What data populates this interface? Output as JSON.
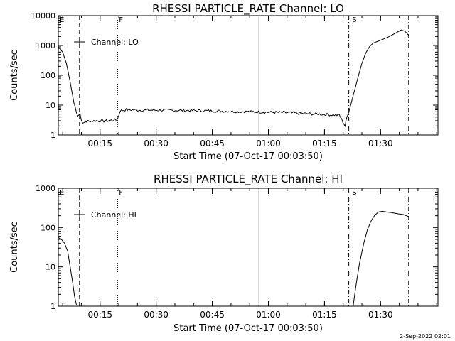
{
  "footer": {
    "timestamp": "2-Sep-2022 02:01"
  },
  "colors": {
    "line": "#000000",
    "background": "#ffffff"
  },
  "chart_data": [
    {
      "type": "line",
      "title": "RHESSI PARTICLE_RATE Channel: LO",
      "xlabel": "Start Time (07-Oct-17 00:03:50)",
      "ylabel": "Counts/sec",
      "yscale": "log",
      "ylim": [
        1,
        10000
      ],
      "xlim_minutes_after_start": [
        0,
        101.5
      ],
      "x_tick_labels": [
        "00:15",
        "00:30",
        "00:45",
        "01:00",
        "01:15",
        "01:30"
      ],
      "y_tick_labels": [
        "1",
        "10",
        "100",
        "1000",
        "10000"
      ],
      "legend": {
        "label": "Channel: LO",
        "position": "top-left"
      },
      "markers": [
        {
          "label": "E",
          "time": "00:03:50",
          "style": "none"
        },
        {
          "label": "",
          "time": "00:09:30",
          "style": "dashed"
        },
        {
          "label": "F",
          "time": "00:19:40",
          "style": "dotted"
        },
        {
          "label": "",
          "time": "00:57:30",
          "style": "solid"
        },
        {
          "label": "",
          "time": "01:21:30",
          "style": "dash-dot"
        },
        {
          "label": "S",
          "time": "01:22:00",
          "style": "none"
        },
        {
          "label": "",
          "time": "01:37:30",
          "style": "dash-dot"
        }
      ],
      "series": [
        {
          "name": "Channel: LO",
          "noise": true,
          "x": [
            "00:03:50",
            "00:05:00",
            "00:06:00",
            "00:07:00",
            "00:08:00",
            "00:09:00",
            "00:09:40",
            "00:10:20",
            "00:11:00",
            "00:12:00",
            "00:14:00",
            "00:16:00",
            "00:18:00",
            "00:19:10",
            "00:19:40",
            "00:20:20",
            "00:22:00",
            "00:26:00",
            "00:30:00",
            "00:35:00",
            "00:40:00",
            "00:45:00",
            "00:50:00",
            "00:55:00",
            "01:00:00",
            "01:05:00",
            "01:10:00",
            "01:15:00",
            "01:19:00",
            "01:20:30",
            "01:21:00",
            "01:22:00",
            "01:23:00",
            "01:24:00",
            "01:25:00",
            "01:26:00",
            "01:27:00",
            "01:28:00",
            "01:30:00",
            "01:32:00",
            "01:34:00",
            "01:35:30",
            "01:36:30",
            "01:37:30"
          ],
          "y": [
            900,
            600,
            250,
            60,
            12,
            4.5,
            5,
            2.3,
            2.8,
            2.9,
            3,
            2.9,
            3.1,
            3.2,
            3.4,
            6.5,
            7,
            6.8,
            6.8,
            6.7,
            6.6,
            6.4,
            6.2,
            6,
            5.8,
            5.6,
            5.2,
            4.9,
            4.6,
            2,
            4,
            10,
            30,
            90,
            250,
            550,
            900,
            1200,
            1500,
            1900,
            2600,
            3300,
            3000,
            2200
          ]
        }
      ]
    },
    {
      "type": "line",
      "title": "RHESSI PARTICLE_RATE Channel: HI",
      "xlabel": "Start Time (07-Oct-17 00:03:50)",
      "ylabel": "Counts/sec",
      "yscale": "log",
      "ylim": [
        1,
        1000
      ],
      "xlim_minutes_after_start": [
        0,
        101.5
      ],
      "x_tick_labels": [
        "00:15",
        "00:30",
        "00:45",
        "01:00",
        "01:15",
        "01:30"
      ],
      "y_tick_labels": [
        "1",
        "10",
        "100",
        "1000"
      ],
      "legend": {
        "label": "Channel: HI",
        "position": "top-left"
      },
      "markers": [
        {
          "label": "E",
          "time": "00:03:50",
          "style": "none"
        },
        {
          "label": "",
          "time": "00:09:30",
          "style": "dashed"
        },
        {
          "label": "F",
          "time": "00:19:40",
          "style": "dotted"
        },
        {
          "label": "",
          "time": "00:57:30",
          "style": "solid"
        },
        {
          "label": "",
          "time": "01:21:30",
          "style": "dash-dot"
        },
        {
          "label": "S",
          "time": "01:22:00",
          "style": "none"
        },
        {
          "label": "",
          "time": "01:37:30",
          "style": "dash-dot"
        }
      ],
      "series": [
        {
          "name": "Channel: HI",
          "noise": false,
          "x": [
            "00:03:50",
            "00:04:30",
            "00:05:30",
            "00:06:20",
            "00:07:00",
            "00:07:40",
            "00:08:10",
            "00:08:40",
            "00:09:00"
          ],
          "y": [
            55,
            52,
            40,
            25,
            10,
            4,
            1.8,
            1.1,
            1
          ]
        },
        {
          "name": "Channel: HI",
          "noise": false,
          "x": [
            "01:22:40",
            "01:23:20",
            "01:24:20",
            "01:25:30",
            "01:26:30",
            "01:27:30",
            "01:28:30",
            "01:29:30",
            "01:30:30",
            "01:31:30",
            "01:33:00",
            "01:34:30",
            "01:36:00",
            "01:37:30"
          ],
          "y": [
            1,
            3,
            12,
            40,
            90,
            150,
            210,
            250,
            260,
            250,
            240,
            225,
            215,
            190
          ]
        }
      ]
    }
  ]
}
